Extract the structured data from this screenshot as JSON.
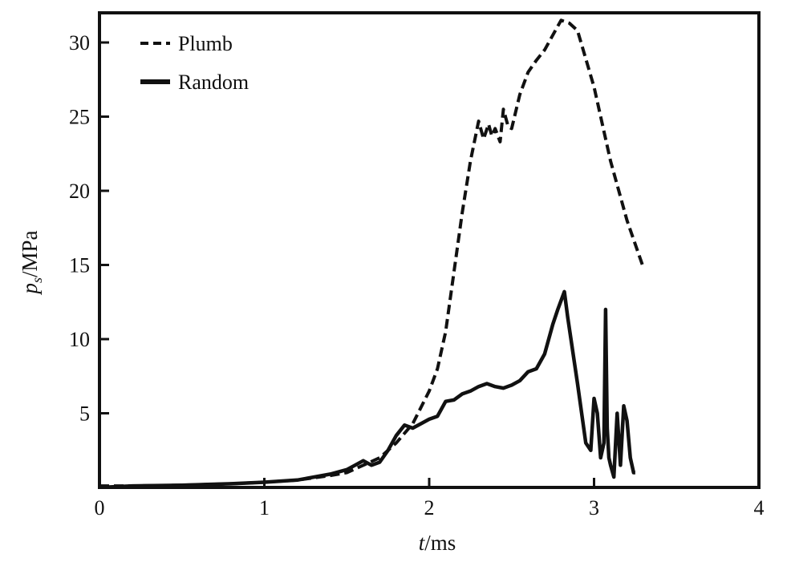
{
  "chart_data": {
    "type": "line",
    "xlabel": {
      "italic": "t",
      "unit": "/ms"
    },
    "ylabel": {
      "italic": "p",
      "sub": "s",
      "unit": "/MPa"
    },
    "xlim": [
      0,
      4
    ],
    "ylim": [
      0,
      32
    ],
    "x_ticks": [
      0,
      1,
      2,
      3,
      4
    ],
    "y_ticks": [
      5,
      10,
      15,
      20,
      25,
      30
    ],
    "grid": false,
    "legend_position": "top-left",
    "series": [
      {
        "name": "Plumb",
        "style": "dashed",
        "color": "#111111",
        "x": [
          0.0,
          0.2,
          0.5,
          0.8,
          1.0,
          1.2,
          1.4,
          1.5,
          1.6,
          1.7,
          1.8,
          1.9,
          2.0,
          2.05,
          2.1,
          2.15,
          2.2,
          2.25,
          2.3,
          2.33,
          2.36,
          2.38,
          2.4,
          2.43,
          2.45,
          2.48,
          2.5,
          2.55,
          2.6,
          2.65,
          2.7,
          2.75,
          2.8,
          2.85,
          2.9,
          3.0,
          3.1,
          3.2,
          3.3
        ],
        "y": [
          0.1,
          0.1,
          0.15,
          0.25,
          0.35,
          0.5,
          0.8,
          1.0,
          1.5,
          2.0,
          3.0,
          4.3,
          6.5,
          8.0,
          10.5,
          14.5,
          18.5,
          22.0,
          24.7,
          23.5,
          24.5,
          23.7,
          24.2,
          23.3,
          25.5,
          24.3,
          24.2,
          26.5,
          28.0,
          28.8,
          29.5,
          30.5,
          31.5,
          31.3,
          30.8,
          27.0,
          22.0,
          18.0,
          14.8
        ]
      },
      {
        "name": "Random",
        "style": "solid",
        "color": "#111111",
        "x": [
          0.0,
          0.2,
          0.5,
          0.8,
          1.0,
          1.2,
          1.4,
          1.5,
          1.55,
          1.6,
          1.65,
          1.7,
          1.75,
          1.8,
          1.85,
          1.9,
          1.95,
          2.0,
          2.05,
          2.1,
          2.15,
          2.2,
          2.25,
          2.3,
          2.35,
          2.4,
          2.45,
          2.5,
          2.55,
          2.6,
          2.65,
          2.7,
          2.75,
          2.78,
          2.82,
          2.84,
          2.86,
          2.88,
          2.9,
          2.95,
          2.98,
          3.0,
          3.02,
          3.04,
          3.06,
          3.07,
          3.08,
          3.09,
          3.1,
          3.12,
          3.14,
          3.16,
          3.18,
          3.2,
          3.22,
          3.24,
          3.25
        ],
        "y": [
          0.0,
          0.1,
          0.15,
          0.25,
          0.35,
          0.5,
          0.9,
          1.2,
          1.5,
          1.8,
          1.5,
          1.7,
          2.5,
          3.5,
          4.2,
          4.0,
          4.3,
          4.6,
          4.8,
          5.8,
          5.9,
          6.3,
          6.5,
          6.8,
          7.0,
          6.8,
          6.7,
          6.9,
          7.2,
          7.8,
          8.0,
          9.0,
          11.0,
          12.0,
          13.2,
          11.5,
          10.0,
          8.5,
          7.0,
          3.0,
          2.5,
          6.0,
          5.0,
          2.0,
          3.0,
          12.0,
          4.0,
          2.0,
          1.5,
          0.7,
          5.0,
          1.5,
          5.5,
          4.5,
          2.0,
          1.0,
          1.0
        ]
      }
    ]
  }
}
